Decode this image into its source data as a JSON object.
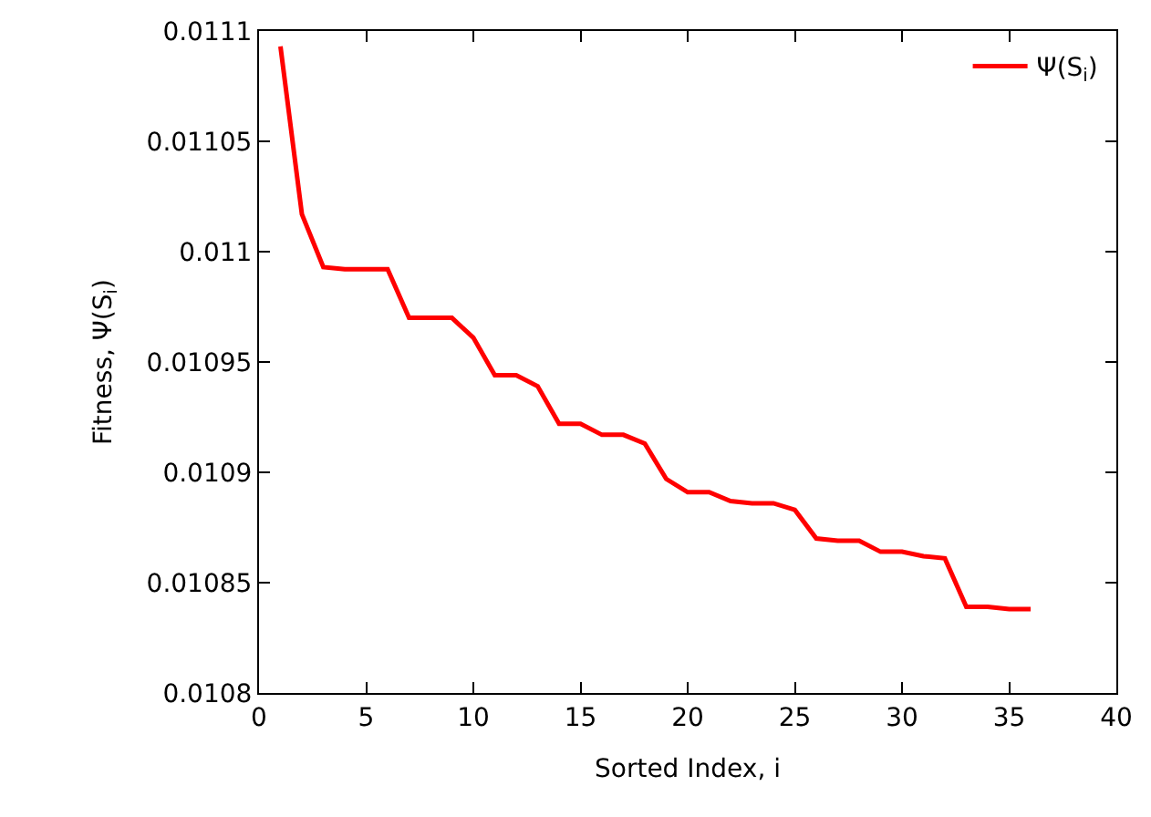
{
  "chart_data": {
    "type": "line",
    "xlabel": "Sorted Index, i",
    "ylabel": "Fitness, Ψ(S$_{i}$)",
    "x": [
      1,
      2,
      3,
      4,
      5,
      6,
      7,
      8,
      9,
      10,
      11,
      12,
      13,
      14,
      15,
      16,
      17,
      18,
      19,
      20,
      21,
      22,
      23,
      24,
      25,
      26,
      27,
      28,
      29,
      30,
      31,
      32,
      33,
      34,
      35,
      36
    ],
    "series": [
      {
        "name": "Ψ(S$_{i}$)",
        "color": "#ff0000",
        "values": [
          0.011093,
          0.011017,
          0.010993,
          0.010992,
          0.010992,
          0.010992,
          0.01097,
          0.01097,
          0.01097,
          0.010961,
          0.010944,
          0.010944,
          0.010939,
          0.010922,
          0.010922,
          0.010917,
          0.010917,
          0.010913,
          0.010897,
          0.010891,
          0.010891,
          0.010887,
          0.010886,
          0.010886,
          0.010883,
          0.01087,
          0.010869,
          0.010869,
          0.010864,
          0.010864,
          0.010862,
          0.010861,
          0.010839,
          0.010839,
          0.010838,
          0.010838
        ]
      }
    ],
    "xlim": [
      0,
      40
    ],
    "xticks": [
      0,
      5,
      10,
      15,
      20,
      25,
      30,
      35,
      40
    ],
    "ylim": [
      0.0108,
      0.0111
    ],
    "yticks": [
      0.0108,
      0.01085,
      0.0109,
      0.01095,
      0.011,
      0.01105,
      0.0111
    ],
    "grid": false,
    "legend": "top right",
    "marker": "none",
    "line_style": "solid"
  }
}
